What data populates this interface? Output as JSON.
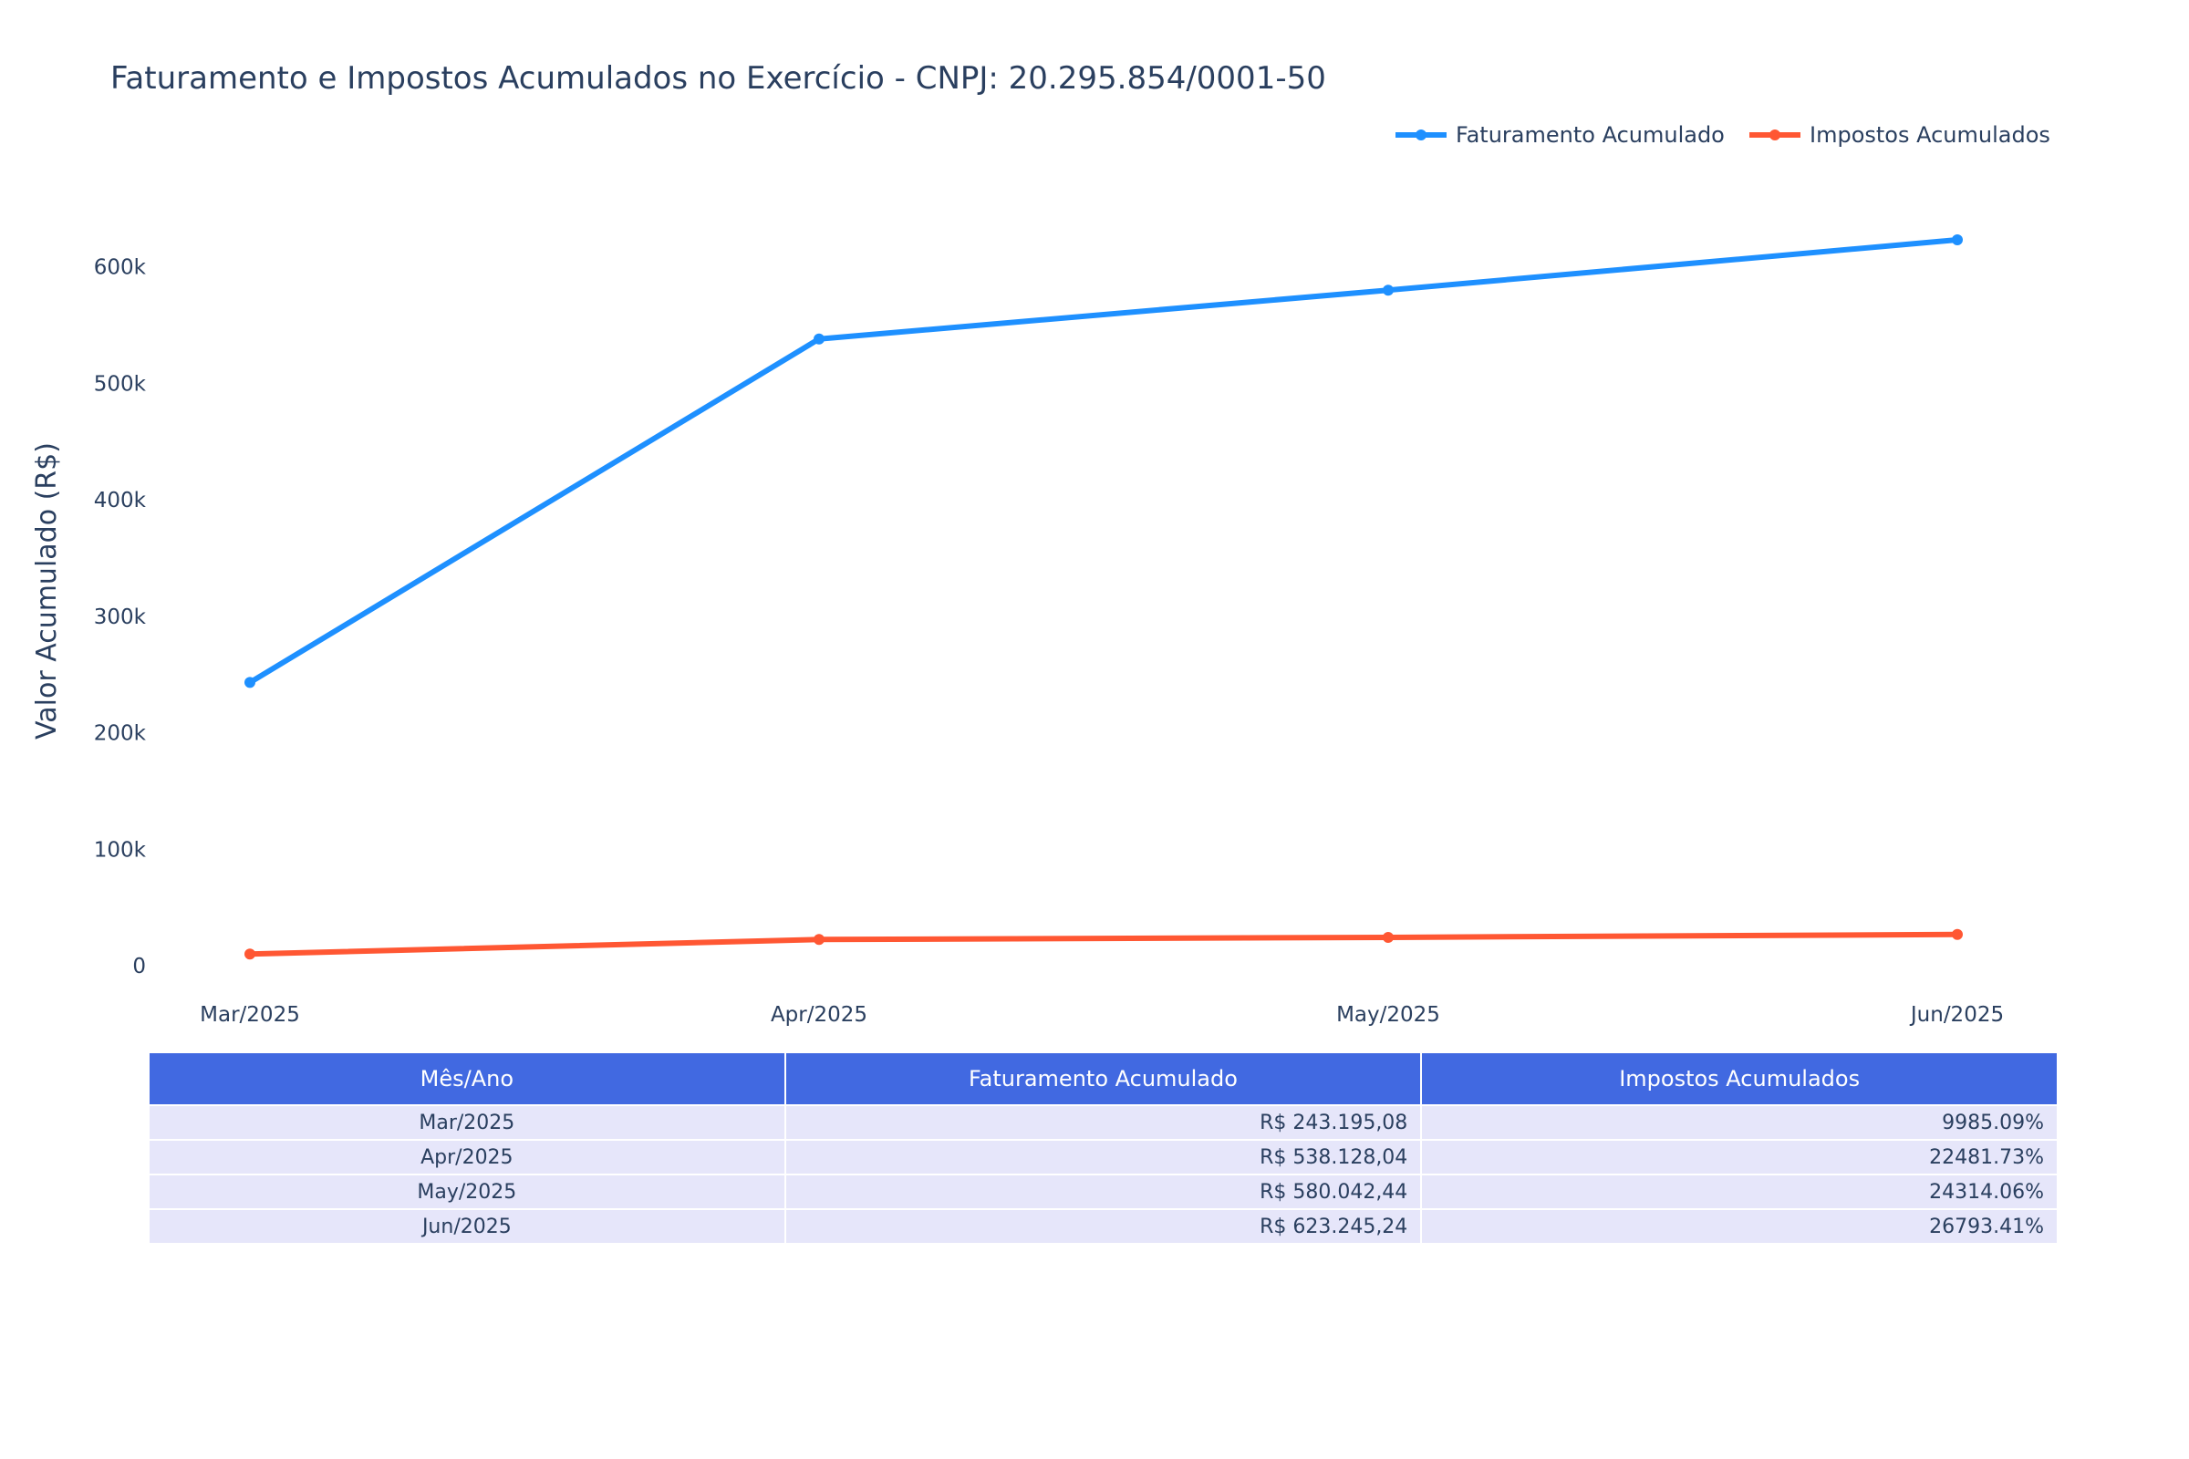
{
  "chart_data": {
    "type": "line",
    "title": "Faturamento e Impostos Acumulados no Exercício - CNPJ: 20.295.854/0001-50",
    "xlabel": "",
    "ylabel": "Valor Acumulado (R$)",
    "categories": [
      "Mar/2025",
      "Apr/2025",
      "May/2025",
      "Jun/2025"
    ],
    "ylim": [
      -18000,
      700000
    ],
    "yticks": [
      0,
      100000,
      200000,
      300000,
      400000,
      500000,
      600000
    ],
    "ytick_labels": [
      "0",
      "100k",
      "200k",
      "300k",
      "400k",
      "500k",
      "600k"
    ],
    "grid": false,
    "legend_position": "top-right",
    "series": [
      {
        "name": "Faturamento Acumulado",
        "color": "#1e90ff",
        "values": [
          243195.08,
          538128.04,
          580042.44,
          623245.24
        ]
      },
      {
        "name": "Impostos Acumulados",
        "color": "#ff5733",
        "values": [
          9985.09,
          22481.73,
          24314.06,
          26793.41
        ]
      }
    ]
  },
  "table": {
    "header_color": "#4169e1",
    "cell_color": "#e6e6fa",
    "headers": [
      "Mês/Ano",
      "Faturamento Acumulado",
      "Impostos Acumulados"
    ],
    "rows": [
      [
        "Mar/2025",
        "R$ 243.195,08",
        "9985.09%"
      ],
      [
        "Apr/2025",
        "R$ 538.128,04",
        "22481.73%"
      ],
      [
        "May/2025",
        "R$ 580.042,44",
        "24314.06%"
      ],
      [
        "Jun/2025",
        "R$ 623.245,24",
        "26793.41%"
      ]
    ]
  }
}
